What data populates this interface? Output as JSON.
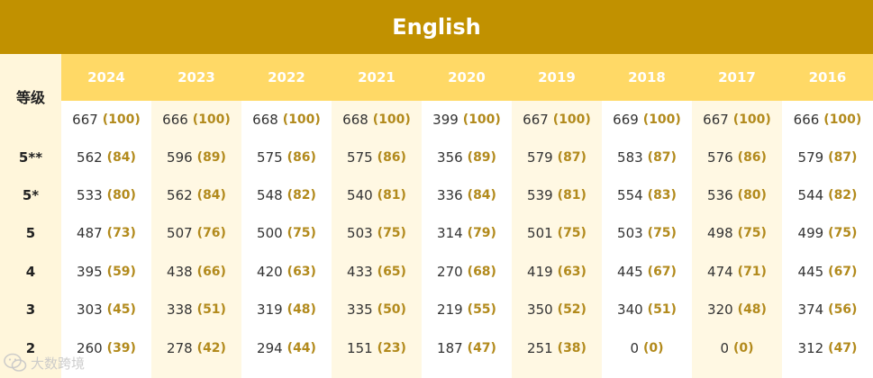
{
  "title": "English",
  "grade_header": "等级",
  "years": [
    "2024",
    "2023",
    "2022",
    "2021",
    "2020",
    "2019",
    "2018",
    "2017",
    "2016"
  ],
  "grade_labels": [
    "",
    "5**",
    "5*",
    "5",
    "4",
    "3",
    "2"
  ],
  "columns": [
    {
      "year": "2024",
      "cells": [
        {
          "score": "667",
          "pct": "(100)"
        },
        {
          "score": "562",
          "pct": "(84)"
        },
        {
          "score": "533",
          "pct": "(80)"
        },
        {
          "score": "487",
          "pct": "(73)"
        },
        {
          "score": "395",
          "pct": "(59)"
        },
        {
          "score": "303",
          "pct": "(45)"
        },
        {
          "score": "260",
          "pct": "(39)"
        }
      ]
    },
    {
      "year": "2023",
      "cells": [
        {
          "score": "666",
          "pct": "(100)"
        },
        {
          "score": "596",
          "pct": "(89)"
        },
        {
          "score": "562",
          "pct": "(84)"
        },
        {
          "score": "507",
          "pct": "(76)"
        },
        {
          "score": "438",
          "pct": "(66)"
        },
        {
          "score": "338",
          "pct": "(51)"
        },
        {
          "score": "278",
          "pct": "(42)"
        }
      ]
    },
    {
      "year": "2022",
      "cells": [
        {
          "score": "668",
          "pct": "(100)"
        },
        {
          "score": "575",
          "pct": "(86)"
        },
        {
          "score": "548",
          "pct": "(82)"
        },
        {
          "score": "500",
          "pct": "(75)"
        },
        {
          "score": "420",
          "pct": "(63)"
        },
        {
          "score": "319",
          "pct": "(48)"
        },
        {
          "score": "294",
          "pct": "(44)"
        }
      ]
    },
    {
      "year": "2021",
      "cells": [
        {
          "score": "668",
          "pct": "(100)"
        },
        {
          "score": "575",
          "pct": "(86)"
        },
        {
          "score": "540",
          "pct": "(81)"
        },
        {
          "score": "503",
          "pct": "(75)"
        },
        {
          "score": "433",
          "pct": "(65)"
        },
        {
          "score": "335",
          "pct": "(50)"
        },
        {
          "score": "151",
          "pct": "(23)"
        }
      ]
    },
    {
      "year": "2020",
      "cells": [
        {
          "score": "399",
          "pct": "(100)"
        },
        {
          "score": "356",
          "pct": "(89)"
        },
        {
          "score": "336",
          "pct": "(84)"
        },
        {
          "score": "314",
          "pct": "(79)"
        },
        {
          "score": "270",
          "pct": "(68)"
        },
        {
          "score": "219",
          "pct": "(55)"
        },
        {
          "score": "187",
          "pct": "(47)"
        }
      ]
    },
    {
      "year": "2019",
      "cells": [
        {
          "score": "667",
          "pct": "(100)"
        },
        {
          "score": "579",
          "pct": "(87)"
        },
        {
          "score": "539",
          "pct": "(81)"
        },
        {
          "score": "501",
          "pct": "(75)"
        },
        {
          "score": "419",
          "pct": "(63)"
        },
        {
          "score": "350",
          "pct": "(52)"
        },
        {
          "score": "251",
          "pct": "(38)"
        }
      ]
    },
    {
      "year": "2018",
      "cells": [
        {
          "score": "669",
          "pct": "(100)"
        },
        {
          "score": "583",
          "pct": "(87)"
        },
        {
          "score": "554",
          "pct": "(83)"
        },
        {
          "score": "503",
          "pct": "(75)"
        },
        {
          "score": "445",
          "pct": "(67)"
        },
        {
          "score": "340",
          "pct": "(51)"
        },
        {
          "score": "0",
          "pct": "(0)"
        }
      ]
    },
    {
      "year": "2017",
      "cells": [
        {
          "score": "667",
          "pct": "(100)"
        },
        {
          "score": "576",
          "pct": "(86)"
        },
        {
          "score": "536",
          "pct": "(80)"
        },
        {
          "score": "498",
          "pct": "(75)"
        },
        {
          "score": "474",
          "pct": "(71)"
        },
        {
          "score": "320",
          "pct": "(48)"
        },
        {
          "score": "0",
          "pct": "(0)"
        }
      ]
    },
    {
      "year": "2016",
      "cells": [
        {
          "score": "666",
          "pct": "(100)"
        },
        {
          "score": "579",
          "pct": "(87)"
        },
        {
          "score": "544",
          "pct": "(82)"
        },
        {
          "score": "499",
          "pct": "(75)"
        },
        {
          "score": "445",
          "pct": "(67)"
        },
        {
          "score": "374",
          "pct": "(56)"
        },
        {
          "score": "312",
          "pct": "(47)"
        }
      ]
    }
  ],
  "watermark": {
    "text": "大数跨境",
    "icon": "wechat-logo-icon"
  },
  "colors": {
    "title_bg": "#c19100",
    "year_bg": "#ffd966",
    "pct_text": "#b28a1c",
    "col_alt_bg": "#fff8e3"
  }
}
